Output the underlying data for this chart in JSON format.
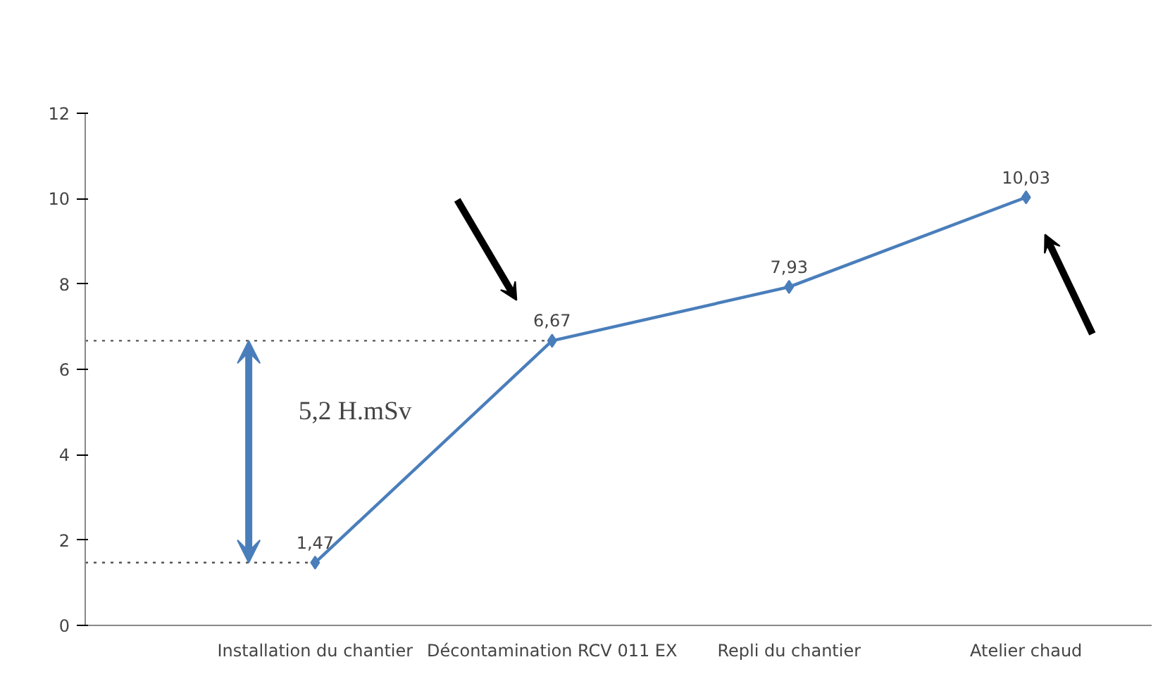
{
  "chart_data": {
    "type": "line",
    "categories": [
      "Installation du chantier",
      "Décontamination RCV 011 EX",
      "Repli du chantier",
      "Atelier chaud"
    ],
    "series": [
      {
        "color": "#4a7ebb",
        "values": [
          1.47,
          6.67,
          7.93,
          10.03
        ],
        "value_labels": [
          "1,47",
          "6,67",
          "7,93",
          "10,03"
        ]
      }
    ],
    "ylim": [
      0,
      12
    ],
    "yticks": [
      0,
      2,
      4,
      6,
      8,
      10,
      12
    ],
    "marker": "diamond",
    "line_style": "solid",
    "ref_lines": [
      {
        "axis": "y",
        "value": 6.67,
        "line_style": "dotted",
        "color": "#555555"
      },
      {
        "axis": "y",
        "value": 1.47,
        "line_style": "dotted",
        "color": "#555555"
      }
    ],
    "annotations": [
      "5,2 H.mSv"
    ]
  }
}
